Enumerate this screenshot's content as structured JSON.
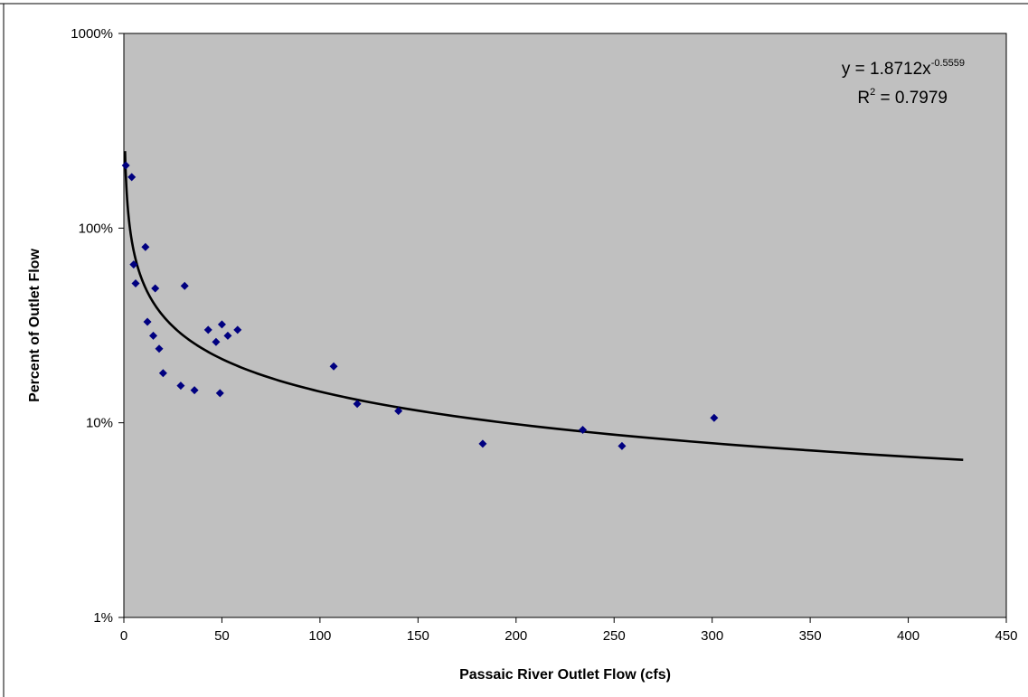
{
  "chart_data": {
    "type": "scatter",
    "title": "",
    "xlabel": "Passaic River Outlet Flow (cfs)",
    "ylabel": "Percent of Outlet Flow",
    "xlim": [
      0,
      450
    ],
    "ylim": [
      0.01,
      10
    ],
    "y_scale": "log",
    "grid": false,
    "colors": {
      "plot_background": "#c0c0c0",
      "marker": "#000080",
      "trendline": "#000000"
    },
    "x_ticks": [
      "0",
      "50",
      "100",
      "150",
      "200",
      "250",
      "300",
      "350",
      "400",
      "450"
    ],
    "y_ticks": [
      "1%",
      "10%",
      "100%",
      "1000%"
    ],
    "series": [
      {
        "marker": "diamond",
        "points": [
          [
            1,
            2.1
          ],
          [
            4,
            1.83
          ],
          [
            5,
            0.65
          ],
          [
            6,
            0.52
          ],
          [
            11,
            0.8
          ],
          [
            12,
            0.33
          ],
          [
            15,
            0.28
          ],
          [
            16,
            0.49
          ],
          [
            18,
            0.24
          ],
          [
            20,
            0.18
          ],
          [
            29,
            0.155
          ],
          [
            31,
            0.505
          ],
          [
            36,
            0.147
          ],
          [
            43,
            0.3
          ],
          [
            47,
            0.26
          ],
          [
            49,
            0.142
          ],
          [
            50,
            0.32
          ],
          [
            53,
            0.28
          ],
          [
            58,
            0.3
          ],
          [
            107,
            0.195
          ],
          [
            119,
            0.125
          ],
          [
            140,
            0.115
          ],
          [
            183,
            0.078
          ],
          [
            234,
            0.092
          ],
          [
            254,
            0.076
          ],
          [
            301,
            0.106
          ]
        ]
      }
    ],
    "trendline": {
      "type": "power",
      "coefficient": 1.8712,
      "exponent": -0.5559,
      "x_range": [
        0.6,
        428
      ],
      "equation_prefix": "y = 1.8712x",
      "equation_exponent": "-0.5559",
      "r2_prefix": "R",
      "r2_exponent": "2",
      "r2_suffix": " = 0.7979"
    }
  }
}
